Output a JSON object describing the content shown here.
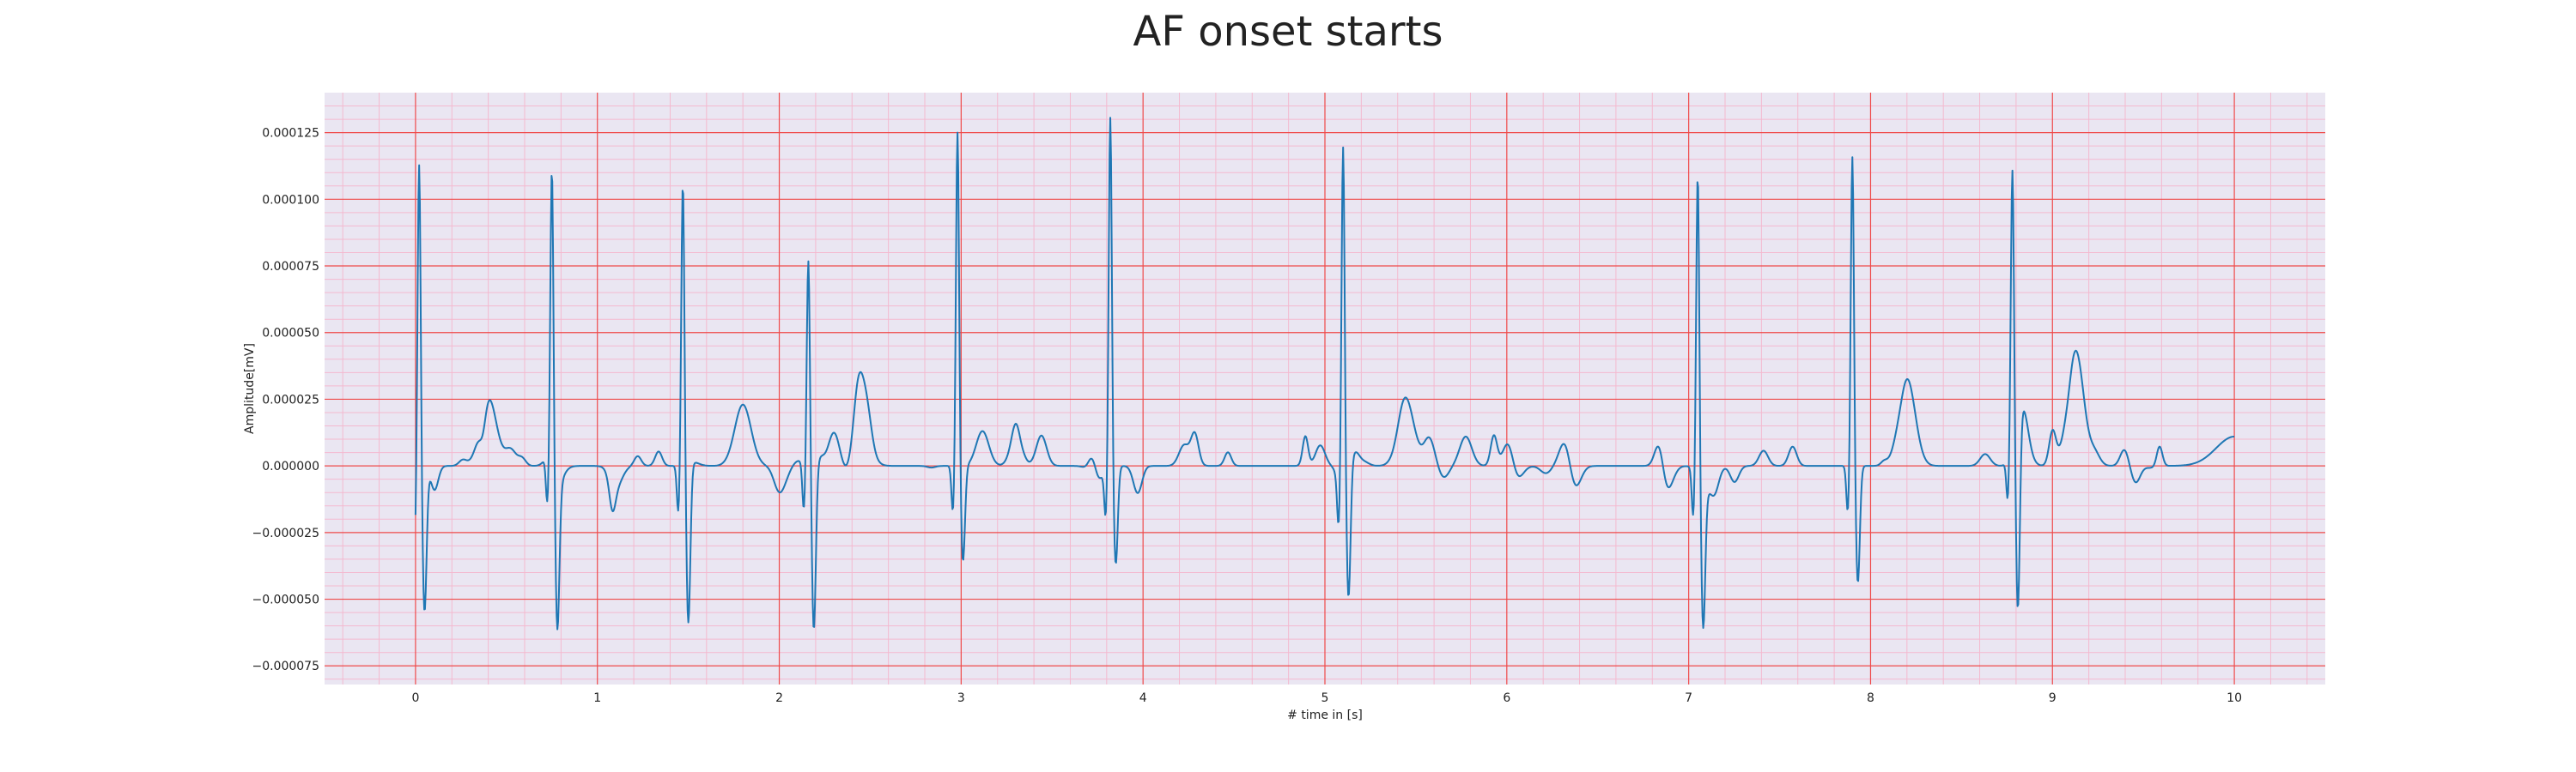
{
  "chart_data": {
    "type": "line",
    "title": "AF onset starts",
    "xlabel": "# time in [s]",
    "ylabel": "Amplitude[mV]",
    "xlim": [
      -0.5,
      10.5
    ],
    "ylim": [
      -8.2e-05,
      0.00014
    ],
    "x_ticks": [
      0,
      1,
      2,
      3,
      4,
      5,
      6,
      7,
      8,
      9,
      10
    ],
    "x_tick_labels": [
      "0",
      "1",
      "2",
      "3",
      "4",
      "5",
      "6",
      "7",
      "8",
      "9",
      "10"
    ],
    "y_ticks": [
      -7.5e-05,
      -5e-05,
      -2.5e-05,
      0.0,
      2.5e-05,
      5e-05,
      7.5e-05,
      0.0001,
      0.000125
    ],
    "y_tick_labels": [
      "−0.000075",
      "−0.000050",
      "−0.000025",
      "0.000000",
      "0.000025",
      "0.000050",
      "0.000075",
      "0.000100",
      "0.000125"
    ],
    "grid": "ecg paper: major red grid, minor pink grid",
    "colors": {
      "line": "#1f77b4",
      "background": "#eae6f2",
      "major_grid": "#ef4a4a",
      "minor_grid": "#f4b9cf"
    },
    "series": [
      {
        "name": "",
        "qrs_peaks": [
          {
            "t": 0.02,
            "peak": 0.000123,
            "trough": -5.1e-05
          },
          {
            "t": 0.75,
            "peak": 0.000111,
            "trough": -5.5e-05
          },
          {
            "t": 1.47,
            "peak": 0.000107,
            "trough": -6e-05
          },
          {
            "t": 2.16,
            "peak": 7.8e-05,
            "trough": -6.2e-05
          },
          {
            "t": 2.98,
            "peak": 0.000126,
            "trough": -3.6e-05
          },
          {
            "t": 3.82,
            "peak": 0.000132,
            "trough": -3.7e-05
          },
          {
            "t": 5.1,
            "peak": 0.000126,
            "trough": -5e-05
          },
          {
            "t": 7.05,
            "peak": 0.000116,
            "trough": -5.1e-05
          },
          {
            "t": 7.9,
            "peak": 0.000117,
            "trough": -4.4e-05
          },
          {
            "t": 8.78,
            "peak": 9.9e-05,
            "trough": -7.1e-05
          }
        ],
        "waves": [
          {
            "t": 0.4,
            "value": 2.6e-05
          },
          {
            "t": 1.8,
            "value": 2.3e-05
          },
          {
            "t": 2.45,
            "value": 2e-05
          },
          {
            "t": 5.45,
            "value": 2.2e-05
          },
          {
            "t": 8.2,
            "value": 3.3e-05
          },
          {
            "t": 9.12,
            "value": 4.1e-05
          }
        ],
        "start_value": -3e-06,
        "end_time": 10.0,
        "end_value": 1.1e-05
      }
    ]
  }
}
